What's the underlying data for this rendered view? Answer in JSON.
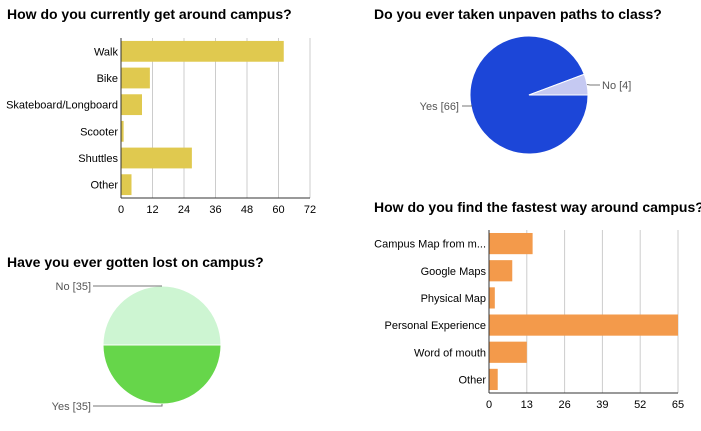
{
  "chart_data": [
    {
      "type": "bar",
      "orientation": "horizontal",
      "title": "How do you currently get around campus?",
      "categories": [
        "Walk",
        "Bike",
        "Skateboard/Longboard",
        "Scooter",
        "Shuttles",
        "Other"
      ],
      "values": [
        62,
        11,
        8,
        1,
        27,
        4
      ],
      "xlim": [
        0,
        72
      ],
      "xticks": [
        "0",
        "12",
        "24",
        "36",
        "48",
        "60",
        "72"
      ],
      "grid": true,
      "color": "#e0c94f"
    },
    {
      "type": "pie",
      "title": "Do you ever taken unpaven paths to class?",
      "slices": [
        {
          "label": "Yes [66]",
          "value": 66,
          "color": "#1c46d8"
        },
        {
          "label": "No [4]",
          "value": 4,
          "color": "#c5c9f2"
        }
      ]
    },
    {
      "type": "pie",
      "title": "Have you ever gotten lost on campus?",
      "slices": [
        {
          "label": "No [35]",
          "value": 35,
          "color": "#cdf5d2"
        },
        {
          "label": "Yes [35]",
          "value": 35,
          "color": "#66d64a"
        }
      ]
    },
    {
      "type": "bar",
      "orientation": "horizontal",
      "title": "How do you find the fastest way around campus?",
      "categories": [
        "Campus Map from m...",
        "Google Maps",
        "Physical Map",
        "Personal Experience",
        "Word of mouth",
        "Other"
      ],
      "values": [
        15,
        8,
        2,
        65,
        13,
        3
      ],
      "xlim": [
        0,
        65
      ],
      "xticks": [
        "0",
        "13",
        "26",
        "39",
        "52",
        "65"
      ],
      "grid": true,
      "color": "#f39a4b"
    }
  ]
}
